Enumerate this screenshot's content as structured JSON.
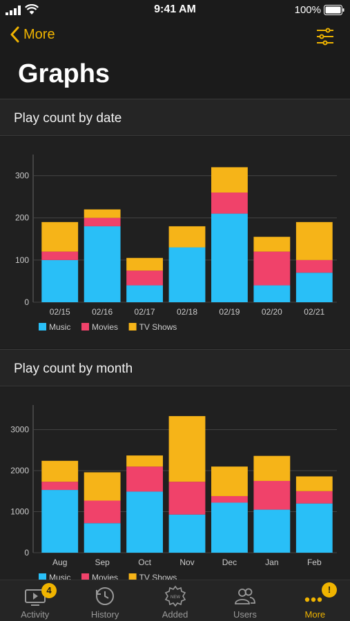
{
  "status_bar": {
    "time": "9:41 AM",
    "battery": "100%"
  },
  "nav": {
    "back_label": "More"
  },
  "page": {
    "title": "Graphs"
  },
  "sections": [
    {
      "title": "Play count by date"
    },
    {
      "title": "Play count by month"
    }
  ],
  "colors": {
    "accent": "#f0b400",
    "music": "#29bff7",
    "movies": "#f0426a",
    "tv": "#f6b418"
  },
  "chart_data": [
    {
      "type": "bar",
      "stacked": true,
      "categories": [
        "02/15",
        "02/16",
        "02/17",
        "02/18",
        "02/19",
        "02/20",
        "02/21"
      ],
      "series": [
        {
          "name": "Music",
          "color": "#29bff7",
          "values": [
            100,
            180,
            40,
            130,
            210,
            40,
            70
          ]
        },
        {
          "name": "Movies",
          "color": "#f0426a",
          "values": [
            20,
            20,
            35,
            0,
            50,
            80,
            30
          ]
        },
        {
          "name": "TV Shows",
          "color": "#f6b418",
          "values": [
            70,
            20,
            30,
            50,
            60,
            35,
            90
          ]
        }
      ],
      "yticks": [
        "0",
        "100",
        "200",
        "300"
      ],
      "ylim": [
        0,
        350
      ],
      "grid": true,
      "legend_position": "bottom-left"
    },
    {
      "type": "bar",
      "stacked": true,
      "categories": [
        "Aug",
        "Sep",
        "Oct",
        "Nov",
        "Dec",
        "Jan",
        "Feb"
      ],
      "series": [
        {
          "name": "Music",
          "color": "#29bff7",
          "values": [
            1530,
            720,
            1490,
            930,
            1220,
            1050,
            1200
          ]
        },
        {
          "name": "Movies",
          "color": "#f0426a",
          "values": [
            200,
            550,
            610,
            800,
            160,
            700,
            300
          ]
        },
        {
          "name": "TV Shows",
          "color": "#f6b418",
          "values": [
            510,
            690,
            270,
            1600,
            720,
            610,
            360
          ]
        }
      ],
      "yticks": [
        "0",
        "1000",
        "2000",
        "3000"
      ],
      "ylim": [
        0,
        3600
      ],
      "grid": true,
      "legend_position": "bottom-left"
    }
  ],
  "tabs": [
    {
      "label": "Activity",
      "icon": "activity-icon",
      "badge": "4"
    },
    {
      "label": "History",
      "icon": "history-icon"
    },
    {
      "label": "Added",
      "icon": "added-icon",
      "icon_text": "NEW"
    },
    {
      "label": "Users",
      "icon": "users-icon"
    },
    {
      "label": "More",
      "icon": "more-icon",
      "badge": "!"
    }
  ]
}
